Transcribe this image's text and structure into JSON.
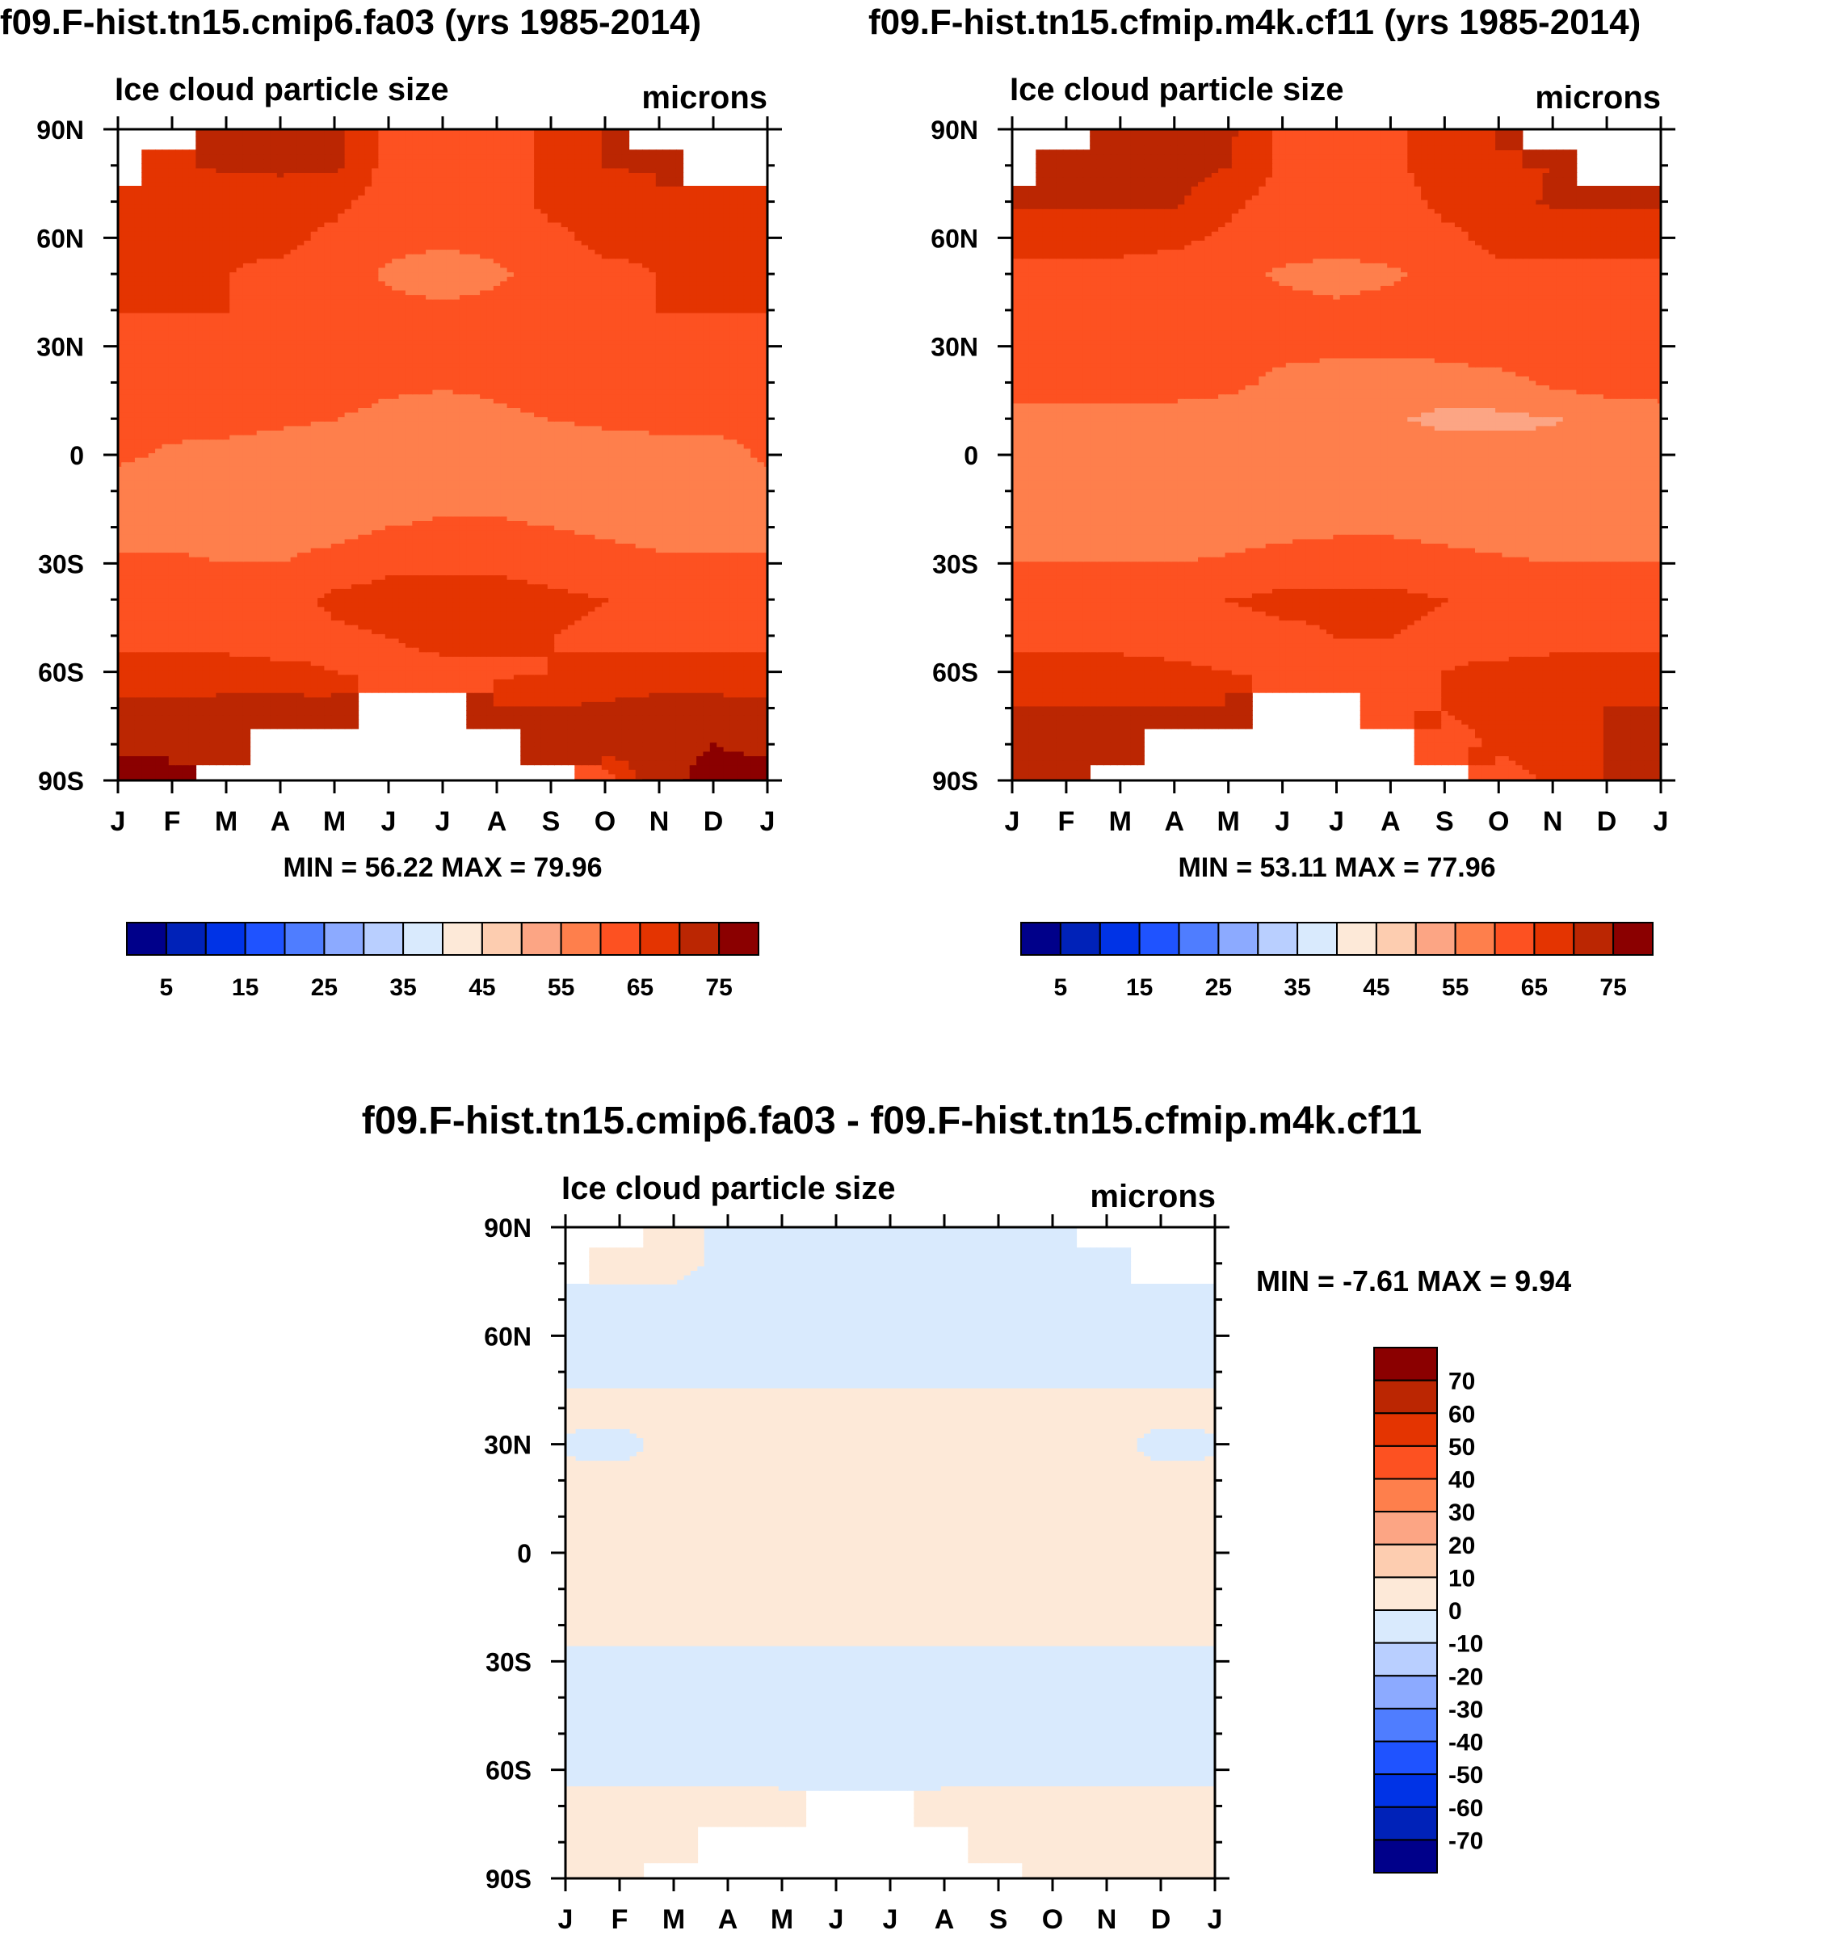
{
  "chart_data": [
    {
      "type": "heatmap",
      "title": "f09.F-hist.tn15.cmip6.fa03 (yrs 1985-2014)",
      "subtitle_left": "Ice cloud particle size",
      "subtitle_right": "microns",
      "x_tick_labels": [
        "J",
        "F",
        "M",
        "A",
        "M",
        "J",
        "J",
        "A",
        "S",
        "O",
        "N",
        "D",
        "J"
      ],
      "y_tick_labels": [
        "90N",
        "60N",
        "30N",
        "0",
        "30S",
        "60S",
        "90S"
      ],
      "xlim": [
        0,
        12
      ],
      "ylim": [
        -90,
        90
      ],
      "stats_text": "MIN =  56.22 MAX =  79.96",
      "colorbar_labels": [
        "5",
        "15",
        "25",
        "35",
        "45",
        "55",
        "65",
        "75"
      ],
      "colorbar_levels": [
        0,
        5,
        10,
        15,
        20,
        25,
        30,
        35,
        40,
        45,
        50,
        55,
        60,
        65,
        70,
        75,
        80
      ],
      "grid": {
        "lats": [
          -90,
          -80,
          -70,
          -60,
          -50,
          -40,
          -30,
          -20,
          -10,
          0,
          10,
          20,
          30,
          40,
          50,
          60,
          70,
          80,
          90
        ],
        "months": [
          0,
          1,
          2,
          3,
          4,
          5,
          6,
          7,
          8,
          9,
          10,
          11,
          12
        ],
        "values": [
          [
            77,
            77,
            null,
            null,
            null,
            null,
            null,
            null,
            null,
            62,
            74,
            76,
            77
          ],
          [
            74,
            74,
            74,
            null,
            null,
            null,
            null,
            null,
            73,
            73,
            74,
            75,
            74
          ],
          [
            71,
            71,
            72,
            73,
            72,
            null,
            null,
            70,
            70,
            71,
            72,
            72,
            71
          ],
          [
            67,
            67,
            67,
            66,
            65,
            64,
            64,
            64,
            65,
            66,
            67,
            67,
            67
          ],
          [
            63,
            63,
            63,
            63,
            64,
            65,
            66,
            66,
            65,
            64,
            63,
            63,
            63
          ],
          [
            62,
            62,
            62,
            63,
            66,
            67,
            67,
            67,
            66,
            65,
            63,
            62,
            62
          ],
          [
            61,
            61,
            60,
            60,
            62,
            64,
            64,
            64,
            63,
            62,
            61,
            61,
            61
          ],
          [
            58,
            58,
            58,
            58,
            58,
            60,
            61,
            61,
            60,
            59,
            58,
            58,
            58
          ],
          [
            57,
            57,
            57,
            57,
            56.5,
            57,
            57.5,
            57.5,
            57,
            57,
            57,
            57,
            57
          ],
          [
            61,
            59,
            58,
            57,
            57,
            57,
            57,
            57,
            57,
            57,
            57,
            57,
            61
          ],
          [
            62,
            62,
            62,
            61,
            60,
            58.5,
            58,
            59,
            60,
            61,
            62,
            62,
            62
          ],
          [
            63,
            63,
            63,
            63,
            63,
            61,
            60.5,
            61,
            62,
            63,
            63,
            63,
            63
          ],
          [
            64,
            64,
            64,
            63,
            61,
            61,
            61,
            61,
            62,
            64,
            64,
            64,
            64
          ],
          [
            65,
            65,
            65,
            64,
            63,
            62,
            61,
            62,
            63,
            64,
            65,
            65,
            65
          ],
          [
            65,
            65,
            65,
            64,
            63,
            59,
            57,
            59,
            62,
            64,
            65,
            65,
            65
          ],
          [
            66,
            66,
            66,
            66,
            64,
            62,
            61,
            62,
            64,
            66,
            66,
            66,
            66
          ],
          [
            66,
            66,
            66,
            67,
            66,
            63,
            62,
            63,
            66,
            67,
            67,
            67,
            66
          ],
          [
            null,
            68,
            71,
            71,
            71,
            63,
            63,
            63,
            66,
            70,
            71,
            null,
            null
          ],
          [
            null,
            null,
            71,
            71,
            71,
            63,
            63,
            63,
            66,
            70,
            null,
            null,
            null
          ]
        ]
      }
    },
    {
      "type": "heatmap",
      "title": "f09.F-hist.tn15.cfmip.m4k.cf11 (yrs 1985-2014)",
      "subtitle_left": "Ice cloud particle size",
      "subtitle_right": "microns",
      "x_tick_labels": [
        "J",
        "F",
        "M",
        "A",
        "M",
        "J",
        "J",
        "A",
        "S",
        "O",
        "N",
        "D",
        "J"
      ],
      "y_tick_labels": [
        "90N",
        "60N",
        "30N",
        "0",
        "30S",
        "60S",
        "90S"
      ],
      "xlim": [
        0,
        12
      ],
      "ylim": [
        -90,
        90
      ],
      "stats_text": "MIN =  53.11 MAX =  77.96",
      "colorbar_labels": [
        "5",
        "15",
        "25",
        "35",
        "45",
        "55",
        "65",
        "75"
      ],
      "colorbar_levels": [
        0,
        5,
        10,
        15,
        20,
        25,
        30,
        35,
        40,
        45,
        50,
        55,
        60,
        65,
        70,
        75,
        80
      ],
      "grid": {
        "lats": [
          -90,
          -80,
          -70,
          -60,
          -50,
          -40,
          -30,
          -20,
          -10,
          0,
          10,
          20,
          30,
          40,
          50,
          60,
          70,
          80,
          90
        ],
        "months": [
          0,
          1,
          2,
          3,
          4,
          5,
          6,
          7,
          8,
          9,
          10,
          11,
          12
        ],
        "values": [
          [
            72,
            72,
            null,
            null,
            null,
            null,
            null,
            null,
            null,
            62,
            66,
            70,
            72
          ],
          [
            71,
            71,
            71,
            null,
            null,
            null,
            null,
            null,
            62,
            66,
            68,
            70,
            71
          ],
          [
            70,
            70,
            70,
            70,
            70,
            null,
            null,
            64,
            65,
            68,
            69,
            70,
            70
          ],
          [
            67,
            67,
            67,
            66,
            65,
            64,
            64,
            64,
            65,
            66,
            67,
            67,
            67
          ],
          [
            63,
            63,
            63,
            63,
            63,
            64,
            65,
            65,
            64,
            63,
            63,
            63,
            63
          ],
          [
            62,
            62,
            62,
            63,
            65,
            66,
            66,
            66,
            65,
            64,
            63,
            62,
            62
          ],
          [
            60,
            60,
            60,
            60,
            61,
            63,
            63,
            63,
            62,
            61,
            60,
            60,
            60
          ],
          [
            57,
            57,
            57,
            57,
            57,
            58,
            59,
            59,
            58,
            57,
            57,
            57,
            57
          ],
          [
            57,
            57,
            57,
            56,
            55,
            57,
            57,
            57,
            56,
            55,
            55,
            57,
            57
          ],
          [
            58,
            58,
            57,
            57,
            57,
            57,
            57,
            57,
            57,
            57,
            57,
            58,
            58
          ],
          [
            58,
            58,
            58,
            58,
            58,
            58,
            57,
            55.5,
            54,
            54,
            54.5,
            57,
            58
          ],
          [
            62,
            62,
            62,
            62,
            61,
            59,
            58,
            57,
            57,
            58,
            61,
            62,
            62
          ],
          [
            63,
            63,
            63,
            62,
            61,
            61,
            61,
            61,
            62,
            63,
            63,
            63,
            63
          ],
          [
            64,
            64,
            64,
            63,
            62,
            62,
            61,
            62,
            63,
            64,
            64,
            64,
            64
          ],
          [
            64,
            64,
            64,
            63,
            62,
            59,
            58,
            59,
            62,
            64,
            64,
            64,
            64
          ],
          [
            66,
            66,
            66,
            66,
            64,
            63,
            62,
            63,
            64,
            66,
            66,
            66,
            66
          ],
          [
            71,
            71,
            71,
            71,
            66,
            63,
            63,
            63,
            66,
            67,
            71,
            71,
            71
          ],
          [
            null,
            71,
            72,
            72,
            70,
            64,
            62,
            64,
            67,
            69,
            70,
            null,
            null
          ],
          [
            null,
            null,
            72,
            74,
            71,
            64,
            63,
            64,
            67,
            70,
            null,
            null,
            null
          ]
        ]
      }
    },
    {
      "type": "heatmap",
      "title": "f09.F-hist.tn15.cmip6.fa03 - f09.F-hist.tn15.cfmip.m4k.cf11",
      "subtitle_left": "Ice cloud particle size",
      "subtitle_right": "microns",
      "x_tick_labels": [
        "J",
        "F",
        "M",
        "A",
        "M",
        "J",
        "J",
        "A",
        "S",
        "O",
        "N",
        "D",
        "J"
      ],
      "y_tick_labels": [
        "90N",
        "60N",
        "30N",
        "0",
        "30S",
        "60S",
        "90S"
      ],
      "xlim": [
        0,
        12
      ],
      "ylim": [
        -90,
        90
      ],
      "stats_text": "MIN =  -7.61 MAX =   9.94",
      "colorbar_labels": [
        "70",
        "60",
        "50",
        "40",
        "30",
        "20",
        "10",
        "0",
        "-10",
        "-20",
        "-30",
        "-40",
        "-50",
        "-60",
        "-70"
      ],
      "colorbar_levels": [
        -80,
        -70,
        -60,
        -50,
        -40,
        -30,
        -20,
        -10,
        0,
        10,
        20,
        30,
        40,
        50,
        60,
        70,
        80
      ],
      "grid": {
        "lats": [
          -90,
          -80,
          -70,
          -60,
          -50,
          -40,
          -30,
          -20,
          -10,
          0,
          10,
          20,
          30,
          40,
          50,
          60,
          70,
          80,
          90
        ],
        "months": [
          0,
          1,
          2,
          3,
          4,
          5,
          6,
          7,
          8,
          9,
          10,
          11,
          12
        ],
        "values": [
          [
            3,
            3,
            null,
            null,
            null,
            null,
            null,
            null,
            null,
            2,
            3,
            3,
            3
          ],
          [
            3,
            3,
            3,
            null,
            null,
            null,
            null,
            null,
            3,
            3,
            3,
            3,
            3
          ],
          [
            2,
            2,
            2,
            2,
            2,
            null,
            null,
            2,
            2,
            2,
            2,
            2,
            2
          ],
          [
            -2,
            -2,
            -2,
            -2,
            -2,
            -2,
            -2,
            -2,
            -2,
            -2,
            -2,
            -2,
            -2
          ],
          [
            -2,
            -2,
            -2,
            -2,
            -2,
            -2,
            -1,
            -2,
            -2,
            -2,
            -2,
            -2,
            -2
          ],
          [
            -2,
            -2,
            -2,
            -2,
            -2,
            -2,
            -2,
            -2,
            -2,
            -2,
            -2,
            -2,
            -2
          ],
          [
            -2,
            -2,
            -2,
            -2,
            -2,
            -2,
            -2,
            -2,
            -2,
            -2,
            -2,
            -2,
            -2
          ],
          [
            2,
            2,
            2,
            2,
            2,
            2,
            2,
            2,
            2,
            2,
            2,
            2,
            2
          ],
          [
            2,
            2,
            2,
            2,
            2,
            2,
            2,
            2,
            2,
            2,
            2,
            2,
            2
          ],
          [
            2,
            2,
            2,
            2,
            2,
            2,
            2,
            2,
            2,
            2,
            2,
            2,
            2
          ],
          [
            2,
            2,
            2,
            2,
            2,
            2,
            2,
            2,
            2,
            2,
            2,
            2,
            2
          ],
          [
            2,
            2,
            2,
            2,
            2,
            2,
            2,
            2,
            2,
            2,
            2,
            2,
            2
          ],
          [
            -1,
            -2,
            2,
            2,
            2,
            2,
            2,
            2,
            2,
            2,
            2,
            -2,
            -1
          ],
          [
            2,
            2,
            2,
            2,
            2,
            2,
            2,
            2,
            2,
            2,
            2,
            2,
            2
          ],
          [
            -2,
            -2,
            -2,
            -2,
            -2,
            -2,
            -2,
            -2,
            -2,
            -2,
            -2,
            -2,
            -2
          ],
          [
            -2,
            -2,
            -2,
            -2,
            -2,
            -2,
            -2,
            -2,
            -2,
            -2,
            -2,
            -2,
            -2
          ],
          [
            -2,
            -2,
            -2,
            -2,
            -2,
            -2,
            -2,
            -2,
            -2,
            -2,
            -2,
            -2,
            -2
          ],
          [
            null,
            2,
            2,
            -2,
            -2,
            -2,
            -2,
            -2,
            -2,
            -2,
            -2,
            null,
            null
          ],
          [
            null,
            null,
            2,
            -2,
            -2,
            -2,
            -2,
            -2,
            -2,
            -2,
            null,
            null,
            null
          ]
        ]
      }
    }
  ],
  "palette": [
    "#00008a",
    "#0022b8",
    "#0033e6",
    "#1f53ff",
    "#4f7dff",
    "#8caaff",
    "#b9cfff",
    "#d9eafd",
    "#fde9d8",
    "#fdcdb0",
    "#fca584",
    "#fe7f4c",
    "#fd5121",
    "#e43401",
    "#bb2602",
    "#8b0000"
  ]
}
